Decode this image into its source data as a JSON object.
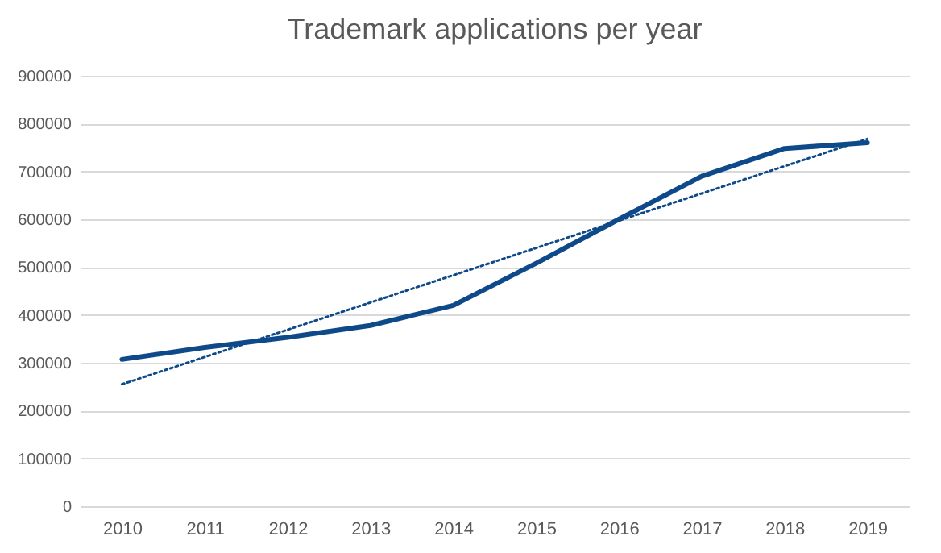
{
  "chart_data": {
    "type": "line",
    "title": "Trademark applications per year",
    "categories": [
      "2010",
      "2011",
      "2012",
      "2013",
      "2014",
      "2015",
      "2016",
      "2017",
      "2018",
      "2019"
    ],
    "series": [
      {
        "color": "#0e4a8a",
        "line_style": "solid",
        "values": [
          307000,
          332000,
          353000,
          378000,
          420000,
          508000,
          600000,
          690000,
          748000,
          760000
        ]
      },
      {
        "color": "#0e4a8a",
        "line_style": "dotted",
        "values": [
          255000,
          312000,
          369000,
          426000,
          483000,
          540000,
          597000,
          654000,
          711000,
          768000
        ]
      }
    ],
    "ylim": [
      0,
      900000
    ],
    "yticks": [
      0,
      100000,
      200000,
      300000,
      400000,
      500000,
      600000,
      700000,
      800000,
      900000
    ],
    "grid": "y"
  }
}
